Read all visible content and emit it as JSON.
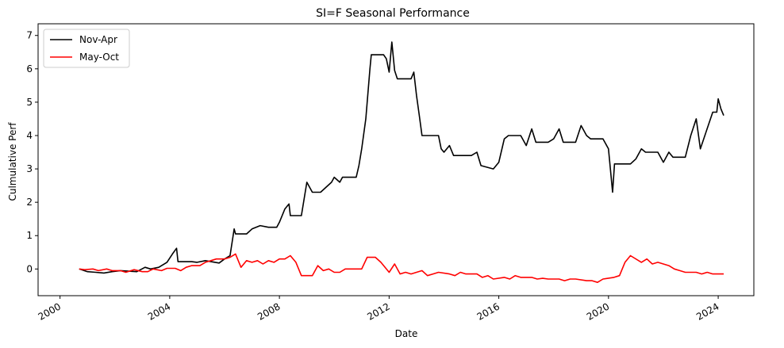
{
  "chart_data": {
    "type": "line",
    "title": "SI=F Seasonal Performance",
    "xlabel": "Date",
    "ylabel": "Culmulative Perf",
    "xlim": [
      1999.2,
      2025.3
    ],
    "ylim": [
      -0.8,
      7.35
    ],
    "x_ticks": [
      2000,
      2004,
      2008,
      2012,
      2016,
      2020,
      2024
    ],
    "x_tick_labels": [
      "2000",
      "2004",
      "2008",
      "2012",
      "2016",
      "2020",
      "2024"
    ],
    "y_ticks": [
      0,
      1,
      2,
      3,
      4,
      5,
      6,
      7
    ],
    "y_tick_labels": [
      "0",
      "1",
      "2",
      "3",
      "4",
      "5",
      "6",
      "7"
    ],
    "grid": false,
    "legend_position": "upper-left",
    "series": [
      {
        "name": "Nov-Apr",
        "color": "#000000",
        "x": [
          2000.7,
          2001.0,
          2001.3,
          2001.6,
          2001.9,
          2002.2,
          2002.8,
          2003.1,
          2003.3,
          2003.6,
          2003.9,
          2004.1,
          2004.25,
          2004.3,
          2004.5,
          2004.8,
          2005.0,
          2005.3,
          2005.8,
          2006.0,
          2006.2,
          2006.35,
          2006.4,
          2006.6,
          2006.8,
          2007.0,
          2007.3,
          2007.6,
          2007.9,
          2008.0,
          2008.2,
          2008.35,
          2008.4,
          2008.8,
          2009.0,
          2009.2,
          2009.3,
          2009.5,
          2009.9,
          2010.0,
          2010.2,
          2010.3,
          2010.8,
          2010.9,
          2011.0,
          2011.15,
          2011.3,
          2011.35,
          2011.5,
          2011.8,
          2011.9,
          2012.0,
          2012.1,
          2012.2,
          2012.3,
          2012.35,
          2012.8,
          2012.9,
          2013.0,
          2013.1,
          2013.2,
          2013.3,
          2013.35,
          2013.8,
          2013.9,
          2014.0,
          2014.2,
          2014.35,
          2014.8,
          2015.0,
          2015.2,
          2015.35,
          2015.8,
          2016.0,
          2016.2,
          2016.35,
          2016.8,
          2017.0,
          2017.2,
          2017.35,
          2017.8,
          2018.0,
          2018.2,
          2018.35,
          2018.8,
          2019.0,
          2019.2,
          2019.35,
          2019.8,
          2020.0,
          2020.15,
          2020.22,
          2020.35,
          2020.8,
          2021.0,
          2021.2,
          2021.35,
          2021.8,
          2022.0,
          2022.2,
          2022.35,
          2022.8,
          2023.0,
          2023.2,
          2023.35,
          2023.8,
          2023.95,
          2024.0,
          2024.1,
          2024.2
        ],
        "values": [
          0.0,
          -0.08,
          -0.1,
          -0.12,
          -0.08,
          -0.05,
          -0.08,
          0.05,
          0.0,
          0.05,
          0.2,
          0.45,
          0.62,
          0.22,
          0.22,
          0.22,
          0.2,
          0.25,
          0.18,
          0.3,
          0.4,
          1.2,
          1.05,
          1.05,
          1.05,
          1.2,
          1.3,
          1.25,
          1.25,
          1.4,
          1.8,
          1.95,
          1.6,
          1.6,
          2.6,
          2.3,
          2.3,
          2.3,
          2.6,
          2.75,
          2.6,
          2.75,
          2.75,
          3.1,
          3.6,
          4.5,
          6.0,
          6.42,
          6.42,
          6.42,
          6.3,
          5.9,
          6.8,
          5.95,
          5.7,
          5.7,
          5.7,
          5.9,
          5.2,
          4.6,
          4.0,
          4.0,
          4.0,
          4.0,
          3.6,
          3.5,
          3.7,
          3.4,
          3.4,
          3.4,
          3.5,
          3.1,
          3.0,
          3.2,
          3.9,
          4.0,
          4.0,
          3.7,
          4.2,
          3.8,
          3.8,
          3.9,
          4.2,
          3.8,
          3.8,
          4.3,
          4.0,
          3.9,
          3.9,
          3.6,
          2.3,
          3.15,
          3.15,
          3.15,
          3.3,
          3.6,
          3.5,
          3.5,
          3.2,
          3.5,
          3.35,
          3.35,
          4.0,
          4.5,
          3.6,
          4.7,
          4.7,
          5.1,
          4.8,
          4.6
        ]
      },
      {
        "name": "May-Oct",
        "color": "#ff0000",
        "x": [
          2000.7,
          2000.9,
          2001.2,
          2001.4,
          2001.7,
          2001.9,
          2002.2,
          2002.4,
          2002.7,
          2003.0,
          2003.2,
          2003.4,
          2003.7,
          2003.9,
          2004.2,
          2004.4,
          2004.6,
          2004.8,
          2005.1,
          2005.3,
          2005.5,
          2005.7,
          2006.0,
          2006.2,
          2006.4,
          2006.6,
          2006.8,
          2007.0,
          2007.2,
          2007.4,
          2007.6,
          2007.8,
          2008.0,
          2008.2,
          2008.4,
          2008.6,
          2008.8,
          2009.2,
          2009.4,
          2009.6,
          2009.8,
          2010.0,
          2010.2,
          2010.4,
          2010.6,
          2010.8,
          2011.0,
          2011.2,
          2011.4,
          2011.5,
          2011.7,
          2012.0,
          2012.2,
          2012.4,
          2012.6,
          2012.8,
          2013.2,
          2013.4,
          2013.6,
          2013.8,
          2014.2,
          2014.4,
          2014.6,
          2014.8,
          2015.2,
          2015.4,
          2015.6,
          2015.8,
          2016.2,
          2016.4,
          2016.6,
          2016.8,
          2017.2,
          2017.4,
          2017.6,
          2017.8,
          2018.2,
          2018.4,
          2018.6,
          2018.8,
          2019.2,
          2019.4,
          2019.6,
          2019.8,
          2020.2,
          2020.4,
          2020.6,
          2020.8,
          2021.2,
          2021.4,
          2021.6,
          2021.8,
          2022.2,
          2022.4,
          2022.6,
          2022.8,
          2023.2,
          2023.4,
          2023.6,
          2023.8,
          2024.2
        ],
        "values": [
          0.0,
          -0.02,
          0.0,
          -0.05,
          0.0,
          -0.05,
          -0.05,
          -0.1,
          -0.02,
          -0.08,
          -0.08,
          0.0,
          -0.05,
          0.02,
          0.02,
          -0.05,
          0.05,
          0.1,
          0.1,
          0.2,
          0.25,
          0.3,
          0.3,
          0.35,
          0.45,
          0.05,
          0.25,
          0.2,
          0.25,
          0.15,
          0.25,
          0.2,
          0.3,
          0.3,
          0.4,
          0.2,
          -0.2,
          -0.2,
          0.1,
          -0.05,
          0.0,
          -0.1,
          -0.1,
          0.0,
          0.0,
          0.0,
          0.0,
          0.35,
          0.35,
          0.35,
          0.2,
          -0.1,
          0.15,
          -0.15,
          -0.1,
          -0.15,
          -0.05,
          -0.2,
          -0.15,
          -0.1,
          -0.15,
          -0.2,
          -0.1,
          -0.15,
          -0.15,
          -0.25,
          -0.2,
          -0.3,
          -0.25,
          -0.3,
          -0.2,
          -0.25,
          -0.25,
          -0.3,
          -0.28,
          -0.3,
          -0.3,
          -0.35,
          -0.3,
          -0.3,
          -0.35,
          -0.35,
          -0.4,
          -0.3,
          -0.25,
          -0.2,
          0.2,
          0.4,
          0.2,
          0.3,
          0.15,
          0.2,
          0.1,
          0.0,
          -0.05,
          -0.1,
          -0.1,
          -0.15,
          -0.1,
          -0.15,
          -0.15
        ]
      }
    ]
  }
}
